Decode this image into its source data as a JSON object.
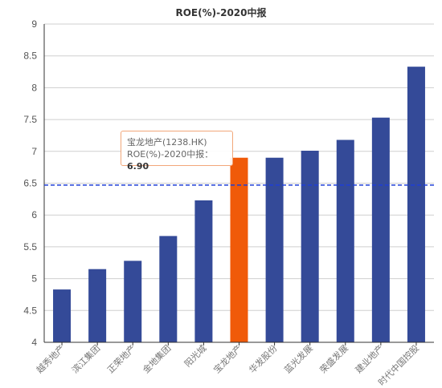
{
  "chart_data": {
    "type": "bar",
    "title": "ROE(%)-2020中报",
    "categories": [
      "越秀地产",
      "滨江集团",
      "正荣地产",
      "金地集团",
      "阳光城",
      "宝龙地产",
      "华发股份",
      "蓝光发展",
      "荣盛发展",
      "建业地产",
      "时代中国控股"
    ],
    "values": [
      4.83,
      5.15,
      5.28,
      5.67,
      6.23,
      6.9,
      6.9,
      7.01,
      7.18,
      7.53,
      8.33
    ],
    "ylim": [
      4,
      9
    ],
    "yticks": [
      "4",
      "4.5",
      "5",
      "5.5",
      "6",
      "6.5",
      "7",
      "7.5",
      "8",
      "8.5",
      "9"
    ],
    "grid": true,
    "legend": "none",
    "highlight_index": 5,
    "reference_line": 6.47,
    "colors": {
      "bar": "#344a98",
      "highlight": "#f05a09",
      "reference_line": "#1f3fd6",
      "grid": "#cfcfcf",
      "axis": "#333333"
    },
    "tooltip": {
      "line1": "宝龙地产(1238.HK)",
      "line2": "ROE(%)-2020中报：",
      "value": "6.90"
    }
  }
}
